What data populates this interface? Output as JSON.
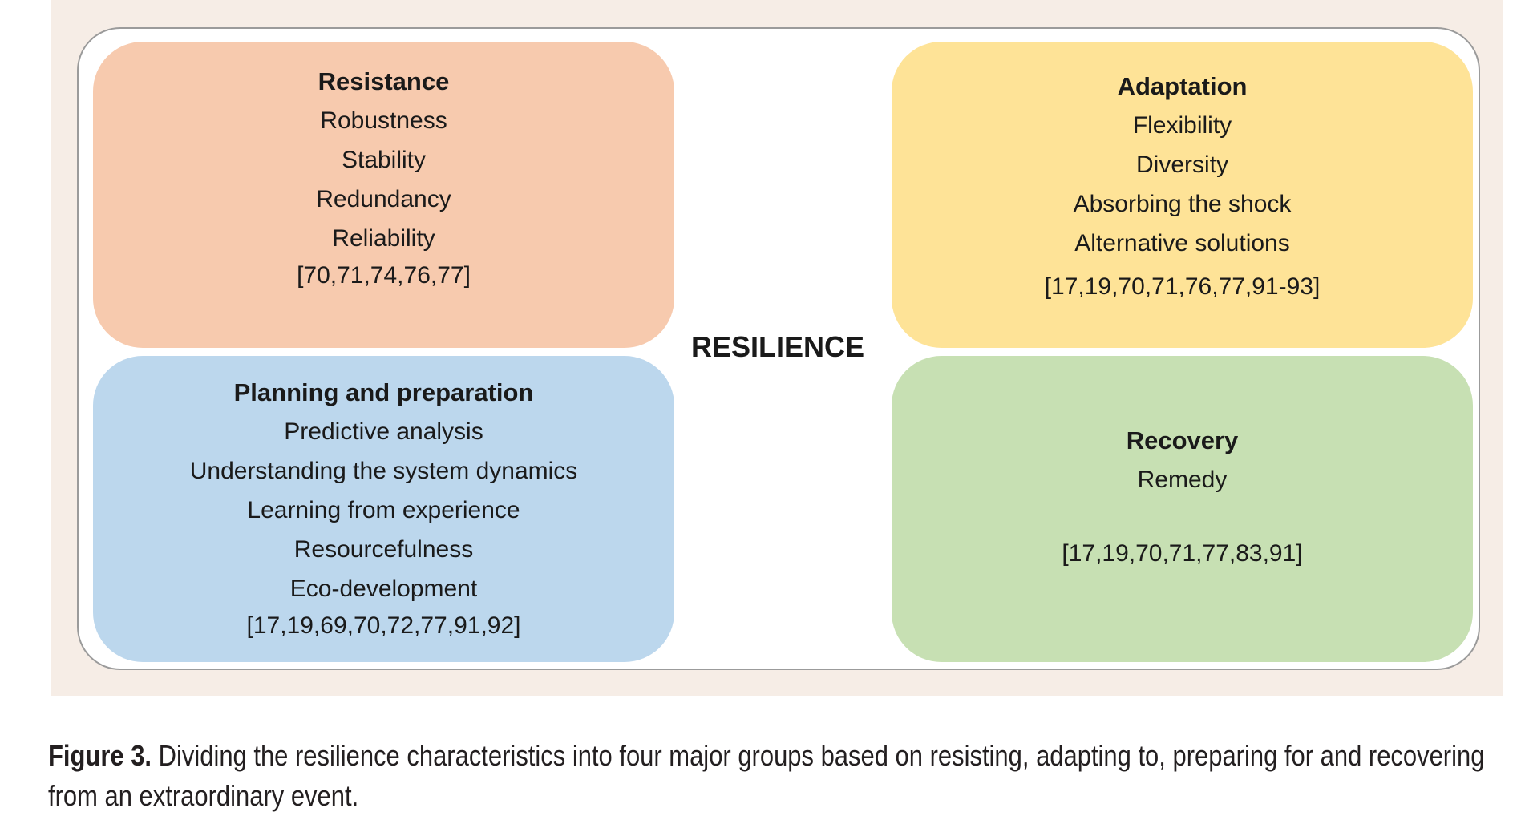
{
  "center_label": "RESILIENCE",
  "groups": {
    "resistance": {
      "title": "Resistance",
      "items": [
        "Robustness",
        "Stability",
        "Redundancy",
        "Reliability"
      ],
      "refs": "[70,71,74,76,77]",
      "color": "#f7caae"
    },
    "adaptation": {
      "title": "Adaptation",
      "items": [
        "Flexibility",
        "Diversity",
        "Absorbing the shock",
        "Alternative solutions"
      ],
      "refs": "[17,19,70,71,76,77,91-93]",
      "color": "#fee397"
    },
    "planning": {
      "title": "Planning and preparation",
      "items": [
        "Predictive analysis",
        "Understanding the system dynamics",
        "Learning from experience",
        "Resourcefulness",
        "Eco-development"
      ],
      "refs": "[17,19,69,70,72,77,91,92]",
      "color": "#bcd7ed"
    },
    "recovery": {
      "title": "Recovery",
      "items": [
        "Remedy"
      ],
      "refs": "[17,19,70,71,77,83,91]",
      "color": "#c7e0b3"
    }
  },
  "caption": {
    "label": "Figure 3.",
    "text": " Dividing the resilience characteristics into four major groups based on resisting, adapting to, preparing for and recovering from an extraordinary event."
  }
}
